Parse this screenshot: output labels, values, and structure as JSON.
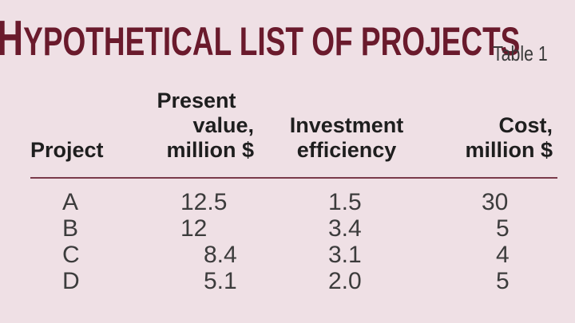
{
  "title": "Hypothetical list of projects",
  "table_label": "Table 1",
  "headers": {
    "project": [
      "Project"
    ],
    "present_value": [
      "Present",
      "value,",
      "million $"
    ],
    "investment_efficiency": [
      "Investment",
      "efficiency"
    ],
    "cost": [
      "Cost,",
      "million $"
    ]
  },
  "rows": [
    {
      "project": "A",
      "present_value": "12.5",
      "investment_efficiency": "1.5",
      "cost": "30"
    },
    {
      "project": "B",
      "present_value": "12",
      "investment_efficiency": "3.4",
      "cost": "5"
    },
    {
      "project": "C",
      "present_value": "8.4",
      "investment_efficiency": "3.1",
      "cost": "4"
    },
    {
      "project": "D",
      "present_value": "5.1",
      "investment_efficiency": "2.0",
      "cost": "5"
    }
  ],
  "colors": {
    "title": "#6a1a2c",
    "rule": "#7a3a4a",
    "background": "#efe0e5"
  }
}
